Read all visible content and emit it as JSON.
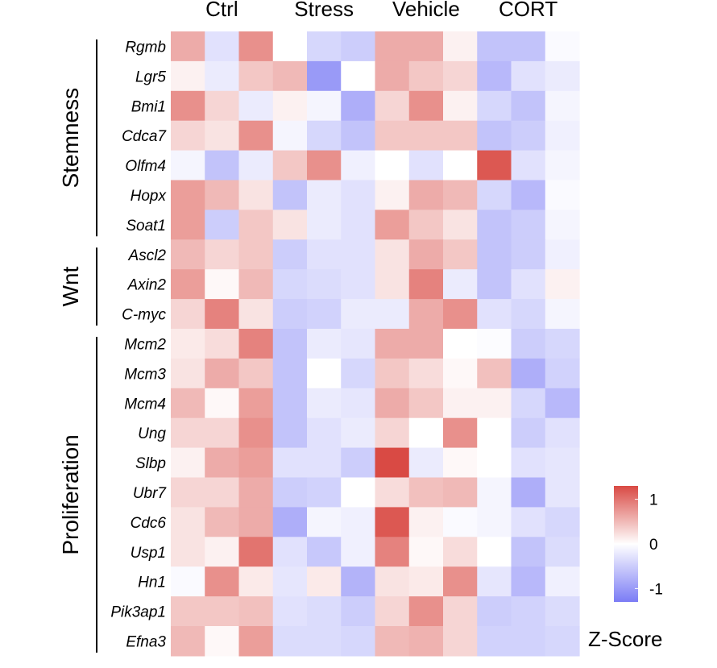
{
  "chart_data": {
    "type": "heatmap",
    "title": "",
    "groups": [
      "Ctrl",
      "Stress",
      "Vehicle",
      "CORT"
    ],
    "samples_per_group": 3,
    "rows": [
      "Rgmb",
      "Lgr5",
      "Bmi1",
      "Cdca7",
      "Olfm4",
      "Hopx",
      "Soat1",
      "Ascl2",
      "Axin2",
      "C-myc",
      "Mcm2",
      "Mcm3",
      "Mcm4",
      "Ung",
      "Slbp",
      "Ubr7",
      "Cdc6",
      "Usp1",
      "Hn1",
      "Pik3ap1",
      "Efna3"
    ],
    "categories": [
      {
        "name": "Stemness",
        "start": 0,
        "end": 6
      },
      {
        "name": "Wnt",
        "start": 7,
        "end": 9
      },
      {
        "name": "Proliferation",
        "start": 10,
        "end": 20
      }
    ],
    "values": [
      [
        0.6,
        -0.3,
        0.8,
        0.0,
        -0.4,
        -0.5,
        0.6,
        0.6,
        0.1,
        -0.6,
        -0.6,
        -0.05
      ],
      [
        0.1,
        -0.2,
        0.4,
        0.5,
        -1.0,
        0.0,
        0.6,
        0.4,
        0.3,
        -0.7,
        -0.3,
        -0.2
      ],
      [
        0.8,
        0.3,
        -0.2,
        0.1,
        -0.1,
        -0.8,
        0.3,
        0.8,
        0.1,
        -0.4,
        -0.6,
        -0.1
      ],
      [
        0.3,
        0.2,
        0.8,
        -0.1,
        -0.4,
        -0.6,
        0.4,
        0.4,
        0.4,
        -0.6,
        -0.5,
        -0.15
      ],
      [
        -0.1,
        -0.6,
        -0.2,
        0.4,
        0.8,
        -0.15,
        0.0,
        -0.3,
        0.0,
        1.2,
        -0.3,
        -0.1
      ],
      [
        0.7,
        0.5,
        0.2,
        -0.6,
        -0.2,
        -0.3,
        0.1,
        0.6,
        0.5,
        -0.4,
        -0.7,
        -0.05
      ],
      [
        0.7,
        -0.5,
        0.4,
        0.2,
        -0.2,
        -0.3,
        0.7,
        0.4,
        0.2,
        -0.6,
        -0.5,
        -0.1
      ],
      [
        0.5,
        0.3,
        0.4,
        -0.5,
        -0.3,
        -0.3,
        0.2,
        0.6,
        0.4,
        -0.6,
        -0.5,
        -0.15
      ],
      [
        0.7,
        0.05,
        0.5,
        -0.4,
        -0.35,
        -0.3,
        0.2,
        0.9,
        -0.2,
        -0.6,
        -0.3,
        0.1
      ],
      [
        0.3,
        0.9,
        0.2,
        -0.5,
        -0.45,
        -0.2,
        -0.2,
        0.6,
        0.8,
        -0.3,
        -0.4,
        -0.1
      ],
      [
        0.15,
        0.25,
        0.9,
        -0.6,
        -0.2,
        -0.25,
        0.6,
        0.6,
        0.0,
        -0.03,
        -0.5,
        -0.4
      ],
      [
        0.2,
        0.6,
        0.4,
        -0.6,
        0.0,
        -0.4,
        0.4,
        0.25,
        0.05,
        0.45,
        -0.8,
        -0.45
      ],
      [
        0.5,
        0.05,
        0.7,
        -0.6,
        -0.2,
        -0.25,
        0.6,
        0.4,
        0.1,
        0.1,
        -0.4,
        -0.7
      ],
      [
        0.3,
        0.3,
        0.8,
        -0.6,
        -0.3,
        -0.2,
        0.3,
        0.0,
        0.8,
        0.0,
        -0.5,
        -0.3
      ],
      [
        0.1,
        0.6,
        0.7,
        -0.3,
        -0.3,
        -0.5,
        1.3,
        -0.2,
        0.05,
        0.0,
        -0.3,
        -0.25
      ],
      [
        0.3,
        0.3,
        0.6,
        -0.5,
        -0.45,
        0.0,
        0.25,
        0.45,
        0.5,
        -0.1,
        -0.8,
        -0.25
      ],
      [
        0.2,
        0.5,
        0.6,
        -0.8,
        -0.1,
        -0.15,
        1.2,
        0.1,
        -0.05,
        -0.1,
        -0.3,
        -0.4
      ],
      [
        0.2,
        0.1,
        1.0,
        -0.3,
        -0.55,
        -0.15,
        0.9,
        0.05,
        0.25,
        0.0,
        -0.6,
        -0.35
      ],
      [
        -0.05,
        0.8,
        0.15,
        -0.25,
        0.15,
        -0.75,
        0.2,
        0.15,
        0.8,
        -0.25,
        -0.7,
        -0.15
      ],
      [
        0.4,
        0.4,
        0.45,
        -0.3,
        -0.35,
        -0.5,
        0.3,
        0.8,
        0.3,
        -0.5,
        -0.45,
        -0.35
      ],
      [
        0.5,
        0.05,
        0.7,
        -0.35,
        -0.35,
        -0.4,
        0.5,
        0.55,
        0.3,
        -0.45,
        -0.45,
        -0.4
      ]
    ],
    "color_scale": {
      "low": "#7b7cf5",
      "mid": "#ffffff",
      "high": "#d94a44",
      "min": -1.3,
      "max": 1.3
    },
    "legend": {
      "title": "Z-Score",
      "ticks": [
        "1",
        "0",
        "-1"
      ],
      "tick_values": [
        1,
        0,
        -1
      ],
      "position": "bottom-right"
    }
  }
}
